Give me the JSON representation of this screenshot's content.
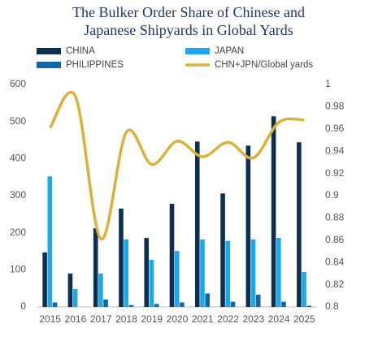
{
  "chart_data": {
    "type": "bar-line",
    "title": [
      "The Bulker Order Share of Chinese and",
      "Japanese Shipyards in Global Yards"
    ],
    "categories": [
      "2015",
      "2016",
      "2017",
      "2018",
      "2019",
      "2020",
      "2021",
      "2022",
      "2023",
      "2024",
      "2025"
    ],
    "series": [
      {
        "name": "CHINA",
        "type": "bar",
        "color": "#0e3050",
        "values": [
          147,
          90,
          212,
          265,
          186,
          278,
          446,
          306,
          435,
          514,
          444
        ]
      },
      {
        "name": "JAPAN",
        "type": "bar",
        "color": "#1ba8ec",
        "values": [
          352,
          48,
          90,
          182,
          127,
          151,
          182,
          178,
          182,
          186,
          94
        ]
      },
      {
        "name": "PHILIPPINES",
        "type": "bar",
        "color": "#1566a8",
        "values": [
          12,
          0,
          20,
          5,
          8,
          12,
          36,
          14,
          33,
          14,
          3
        ]
      },
      {
        "name": "CHN+JPN/Global yards",
        "type": "line",
        "axis": "y2",
        "color": "#d9b13b",
        "values": [
          0.961,
          0.989,
          0.861,
          0.957,
          0.928,
          0.949,
          0.935,
          0.948,
          0.934,
          0.966,
          0.968
        ]
      }
    ],
    "ylim": [
      0,
      600
    ],
    "yticks": [
      0,
      100,
      200,
      300,
      400,
      500,
      600
    ],
    "y2lim": [
      0.8,
      1
    ],
    "y2ticks": [
      0.8,
      0.82,
      0.84,
      0.86,
      0.88,
      0.9,
      0.92,
      0.94,
      0.96,
      0.98,
      1
    ],
    "grid": false
  }
}
